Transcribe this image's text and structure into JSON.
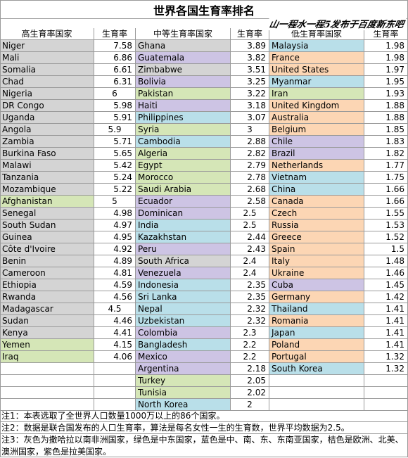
{
  "title": "世界各国生育率排名",
  "watermark": "山一程水一程5发布于百度新东吧",
  "colors": {
    "gray": "#d4d4d4",
    "green": "#d5e6b7",
    "blue": "#b9dfe9",
    "orange": "#fcd6b4",
    "purple": "#cdc4e4",
    "none": "#ffffff"
  },
  "headers": {
    "high_name": "高生育率国家",
    "high_val": "生育率",
    "mid_name": "中等生育率国家",
    "mid_val": "生育率",
    "low_name": "低生育率国家",
    "low_val": "生育率"
  },
  "high": [
    {
      "name": "Niger",
      "val": "7.58",
      "color": "gray"
    },
    {
      "name": "Mali",
      "val": "6.86",
      "color": "gray"
    },
    {
      "name": "Somalia",
      "val": "6.61",
      "color": "gray"
    },
    {
      "name": "Chad",
      "val": "6.31",
      "color": "gray"
    },
    {
      "name": "Nigeria",
      "val": "6",
      "color": "gray",
      "center": true
    },
    {
      "name": "DR Congo",
      "val": "5.98",
      "color": "gray"
    },
    {
      "name": "Uganda",
      "val": "5.91",
      "color": "gray"
    },
    {
      "name": "Angola",
      "val": "5.9",
      "color": "gray",
      "center": true
    },
    {
      "name": "Zambia",
      "val": "5.71",
      "color": "gray"
    },
    {
      "name": "Burkina Faso",
      "val": "5.65",
      "color": "gray"
    },
    {
      "name": "Malawi",
      "val": "5.42",
      "color": "gray"
    },
    {
      "name": "Tanzania",
      "val": "5.24",
      "color": "gray"
    },
    {
      "name": "Mozambique",
      "val": "5.22",
      "color": "gray"
    },
    {
      "name": "Afghanistan",
      "val": "5",
      "color": "green",
      "center": true
    },
    {
      "name": "Senegal",
      "val": "4.98",
      "color": "gray"
    },
    {
      "name": "South Sudan",
      "val": "4.97",
      "color": "gray"
    },
    {
      "name": "Guinea",
      "val": "4.95",
      "color": "gray"
    },
    {
      "name": "Côte d'Ivoire",
      "val": "4.92",
      "color": "gray"
    },
    {
      "name": "Benin",
      "val": "4.89",
      "color": "gray"
    },
    {
      "name": "Cameroon",
      "val": "4.81",
      "color": "gray"
    },
    {
      "name": "Ethiopia",
      "val": "4.59",
      "color": "gray"
    },
    {
      "name": "Rwanda",
      "val": "4.56",
      "color": "gray"
    },
    {
      "name": "Madagascar",
      "val": "4.5",
      "color": "gray",
      "center": true
    },
    {
      "name": "Sudan",
      "val": "4.46",
      "color": "gray"
    },
    {
      "name": "Kenya",
      "val": "4.41",
      "color": "gray"
    },
    {
      "name": "Yemen",
      "val": "4.15",
      "color": "green"
    },
    {
      "name": "Iraq",
      "val": "4.06",
      "color": "green"
    }
  ],
  "mid": [
    {
      "name": "Ghana",
      "val": "3.89",
      "color": "gray"
    },
    {
      "name": "Guatemala",
      "val": "3.82",
      "color": "purple"
    },
    {
      "name": "Zimbabwe",
      "val": "3.51",
      "color": "gray"
    },
    {
      "name": "Bolivia",
      "val": "3.25",
      "color": "purple"
    },
    {
      "name": "Pakistan",
      "val": "3.22",
      "color": "green"
    },
    {
      "name": "Haiti",
      "val": "3.18",
      "color": "purple"
    },
    {
      "name": "Philippines",
      "val": "3.07",
      "color": "blue"
    },
    {
      "name": "Syria",
      "val": "3",
      "color": "green",
      "center": true
    },
    {
      "name": "Cambodia",
      "val": "2.88",
      "color": "blue"
    },
    {
      "name": "Algeria",
      "val": "2.82",
      "color": "green"
    },
    {
      "name": "Egypt",
      "val": "2.79",
      "color": "green"
    },
    {
      "name": "Morocco",
      "val": "2.78",
      "color": "green"
    },
    {
      "name": "Saudi Arabia",
      "val": "2.68",
      "color": "green"
    },
    {
      "name": "Ecuador",
      "val": "2.58",
      "color": "purple"
    },
    {
      "name": "Dominican",
      "val": "2.5",
      "color": "purple",
      "center": true
    },
    {
      "name": "India",
      "val": "2.5",
      "color": "blue",
      "center": true
    },
    {
      "name": "Kazakhstan",
      "val": "2.44",
      "color": "blue"
    },
    {
      "name": "Peru",
      "val": "2.43",
      "color": "purple"
    },
    {
      "name": "South Africa",
      "val": "2.4",
      "color": "gray",
      "center": true
    },
    {
      "name": "Venezuela",
      "val": "2.4",
      "color": "purple",
      "center": true
    },
    {
      "name": "Indonesia",
      "val": "2.35",
      "color": "blue"
    },
    {
      "name": "Sri Lanka",
      "val": "2.35",
      "color": "blue"
    },
    {
      "name": "Nepal",
      "val": "2.32",
      "color": "blue"
    },
    {
      "name": "Uzbekistan",
      "val": "2.32",
      "color": "blue"
    },
    {
      "name": "Colombia",
      "val": "2.3",
      "color": "purple",
      "center": true
    },
    {
      "name": "Bangladesh",
      "val": "2.2",
      "color": "blue",
      "center": true
    },
    {
      "name": "Mexico",
      "val": "2.2",
      "color": "purple",
      "center": true
    },
    {
      "name": "Argentina",
      "val": "2.18",
      "color": "purple"
    },
    {
      "name": "Turkey",
      "val": "2.05",
      "color": "green"
    },
    {
      "name": "Tunisia",
      "val": "2.02",
      "color": "green"
    },
    {
      "name": "North Korea",
      "val": "2",
      "color": "blue",
      "center": true
    }
  ],
  "low": [
    {
      "name": "Malaysia",
      "val": "1.98",
      "color": "blue"
    },
    {
      "name": "France",
      "val": "1.98",
      "color": "orange"
    },
    {
      "name": "United States",
      "val": "1.97",
      "color": "orange"
    },
    {
      "name": "Myanmar",
      "val": "1.95",
      "color": "blue"
    },
    {
      "name": "Iran",
      "val": "1.93",
      "color": "green"
    },
    {
      "name": "United Kingdom",
      "val": "1.88",
      "color": "orange"
    },
    {
      "name": "Australia",
      "val": "1.88",
      "color": "orange"
    },
    {
      "name": "Belgium",
      "val": "1.85",
      "color": "orange"
    },
    {
      "name": "Chile",
      "val": "1.83",
      "color": "purple"
    },
    {
      "name": "Brazil",
      "val": "1.82",
      "color": "purple"
    },
    {
      "name": "Netherlands",
      "val": "1.77",
      "color": "orange"
    },
    {
      "name": "Vietnam",
      "val": "1.75",
      "color": "blue"
    },
    {
      "name": "China",
      "val": "1.66",
      "color": "blue"
    },
    {
      "name": "Canada",
      "val": "1.66",
      "color": "orange"
    },
    {
      "name": "Czech",
      "val": "1.55",
      "color": "orange"
    },
    {
      "name": "Russia",
      "val": "1.53",
      "color": "orange"
    },
    {
      "name": "Greece",
      "val": "1.52",
      "color": "orange"
    },
    {
      "name": "Spain",
      "val": "1.5",
      "color": "orange"
    },
    {
      "name": "Italy",
      "val": "1.48",
      "color": "orange"
    },
    {
      "name": "Ukraine",
      "val": "1.46",
      "color": "orange"
    },
    {
      "name": "Cuba",
      "val": "1.45",
      "color": "purple"
    },
    {
      "name": "Germany",
      "val": "1.42",
      "color": "orange"
    },
    {
      "name": "Thailand",
      "val": "1.41",
      "color": "blue"
    },
    {
      "name": "Romania",
      "val": "1.41",
      "color": "orange"
    },
    {
      "name": "Japan",
      "val": "1.41",
      "color": "blue"
    },
    {
      "name": "Poland",
      "val": "1.41",
      "color": "orange"
    },
    {
      "name": "Portugal",
      "val": "1.32",
      "color": "orange"
    },
    {
      "name": "South Korea",
      "val": "1.32",
      "color": "blue"
    }
  ],
  "notes": [
    "注1：本表选取了全世界人口数量1000万以上的86个国家。",
    "注2：数据是联合国发布的人口生育率，算法是每名女性一生的生育数，世界平均数据为2.5。",
    "注3：灰色为撒哈拉以南非洲国家，绿色是中东国家，蓝色是中、南、东、东南亚国家，桔色是欧洲、北美、澳洲国家，紫色是拉美国家。"
  ]
}
